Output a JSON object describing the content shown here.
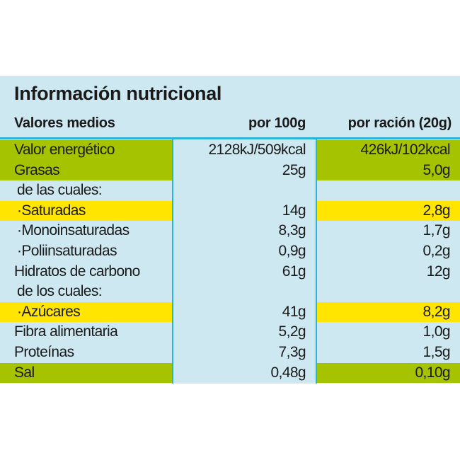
{
  "title": "Información nutricional",
  "header": {
    "label": "Valores medios",
    "col_100g": "por 100g",
    "col_serving": "por ración (20g)"
  },
  "colors": {
    "panel": "#cde8f1",
    "rule": "#2ab3d6",
    "green_highlight": "#a6c300",
    "yellow_highlight": "#ffe500"
  },
  "rows": [
    {
      "label": "Valor energético",
      "per100": "2128kJ/509kcal",
      "serving": "426kJ/102kcal",
      "highlight": "green"
    },
    {
      "label": "Grasas",
      "per100": "25g",
      "serving": "5,0g",
      "highlight": "green"
    },
    {
      "label": "de las cuales:",
      "per100": "",
      "serving": "",
      "highlight": "none"
    },
    {
      "label": "·Saturadas",
      "per100": "14g",
      "serving": "2,8g",
      "highlight": "yellow"
    },
    {
      "label": "·Monoinsaturadas",
      "per100": "8,3g",
      "serving": "1,7g",
      "highlight": "none"
    },
    {
      "label": "·Poliinsaturadas",
      "per100": "0,9g",
      "serving": "0,2g",
      "highlight": "none"
    },
    {
      "label": "Hidratos de carbono",
      "per100": "61g",
      "serving": "12g",
      "highlight": "none"
    },
    {
      "label": "de los cuales:",
      "per100": "",
      "serving": "",
      "highlight": "none"
    },
    {
      "label": "·Azúcares",
      "per100": "41g",
      "serving": "8,2g",
      "highlight": "yellow"
    },
    {
      "label": "Fibra alimentaria",
      "per100": "5,2g",
      "serving": "1,0g",
      "highlight": "none"
    },
    {
      "label": "Proteínas",
      "per100": "7,3g",
      "serving": "1,5g",
      "highlight": "none"
    },
    {
      "label": "Sal",
      "per100": "0,48g",
      "serving": "0,10g",
      "highlight": "green"
    }
  ]
}
